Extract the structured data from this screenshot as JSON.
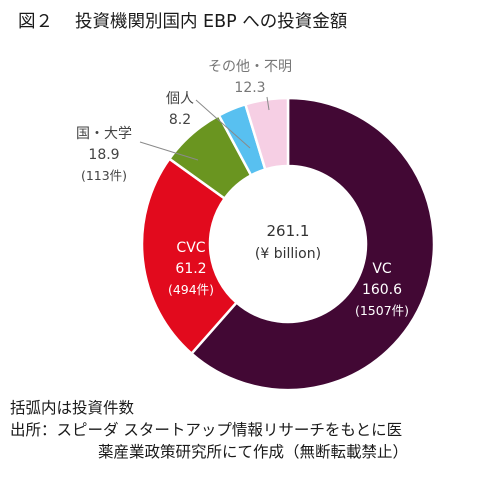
{
  "title": {
    "figure_label": "図２",
    "text": "投資機関別国内 EBP への投資金額"
  },
  "chart_data": {
    "type": "donut",
    "title": "投資機関別国内 EBP への投資金額",
    "total": {
      "value": "261.1",
      "unit": "(¥ billion)"
    },
    "slices": [
      {
        "name": "VC",
        "value": 160.6,
        "count": "(1507件)",
        "color": "#420834"
      },
      {
        "name": "CVC",
        "value": 61.2,
        "count": "(494件)",
        "color": "#e20a1d"
      },
      {
        "name": "国・大学",
        "value": 18.9,
        "count": "(113件)",
        "color": "#6a9520"
      },
      {
        "name": "個人",
        "value": 8.2,
        "count": "",
        "color": "#58c0f0"
      },
      {
        "name": "その他・不明",
        "value": 12.3,
        "count": "",
        "color": "#f6cfe4"
      }
    ]
  },
  "notes": {
    "line1": "括弧内は投資件数",
    "line2": "出所：スピーダ スタートアップ情報リサーチをもとに医",
    "line3": "薬産業政策研究所にて作成（無断転載禁止）"
  }
}
